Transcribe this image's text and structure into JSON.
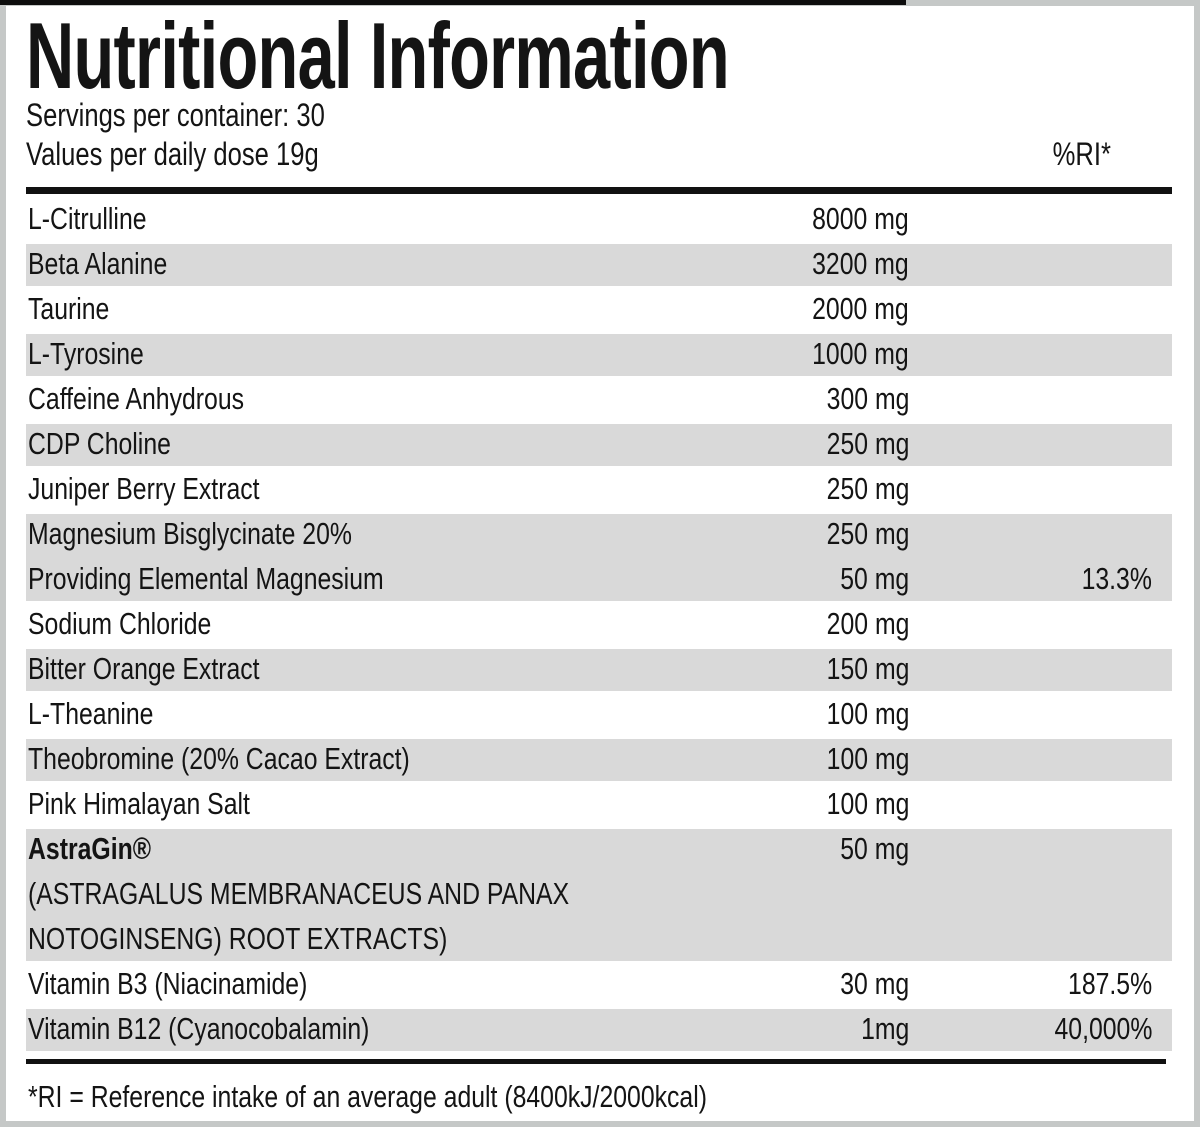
{
  "header": {
    "title": "Nutritional Information",
    "servings_line": "Servings per container: 30",
    "dose_line": "Values per daily dose 19g",
    "ri_column_header": "%RI*"
  },
  "table": {
    "amount_unit": "mg",
    "rows": [
      {
        "label": "L-Citrulline",
        "amount": "8000 mg",
        "ri": ""
      },
      {
        "label": "Beta Alanine",
        "amount": "3200 mg",
        "ri": ""
      },
      {
        "label": "Taurine",
        "amount": "2000 mg",
        "ri": ""
      },
      {
        "label": "L-Tyrosine",
        "amount": "1000 mg",
        "ri": ""
      },
      {
        "label": "Caffeine Anhydrous",
        "amount": "300 mg",
        "ri": ""
      },
      {
        "label": "CDP Choline",
        "amount": "250 mg",
        "ri": ""
      },
      {
        "label": "Juniper Berry Extract",
        "amount": "250 mg",
        "ri": ""
      },
      {
        "label": "Magnesium Bisglycinate 20%",
        "amount": "250 mg",
        "ri": ""
      },
      {
        "label": "Providing Elemental Magnesium",
        "amount": "50 mg",
        "ri": "13.3%"
      },
      {
        "label": "Sodium Chloride",
        "amount": "200 mg",
        "ri": ""
      },
      {
        "label": "Bitter Orange Extract",
        "amount": "150 mg",
        "ri": ""
      },
      {
        "label": "L-Theanine",
        "amount": "100 mg",
        "ri": ""
      },
      {
        "label": "Theobromine (20% Cacao Extract)",
        "amount": "100 mg",
        "ri": ""
      },
      {
        "label": "Pink Himalayan Salt",
        "amount": "100 mg",
        "ri": ""
      },
      {
        "label": "AstraGin®",
        "amount": "50 mg",
        "ri": ""
      },
      {
        "label": "(ASTRAGALUS MEMBRANACEUS AND PANAX",
        "amount": "",
        "ri": ""
      },
      {
        "label": "NOTOGINSENG) ROOT EXTRACTS)",
        "amount": "",
        "ri": ""
      },
      {
        "label": "Vitamin B3 (Niacinamide)",
        "amount": "30 mg",
        "ri": "187.5%"
      },
      {
        "label": "Vitamin B12 (Cyanocobalamin)",
        "amount": "1mg",
        "ri": "40,000%"
      }
    ]
  },
  "footer": {
    "note": "*RI = Reference intake of an average adult (8400kJ/2000kcal)"
  },
  "colors": {
    "row_band_gray": "#d9d9d9",
    "frame_gray": "#c5c8c7",
    "text_black": "#141414",
    "rule_black": "#111111"
  }
}
